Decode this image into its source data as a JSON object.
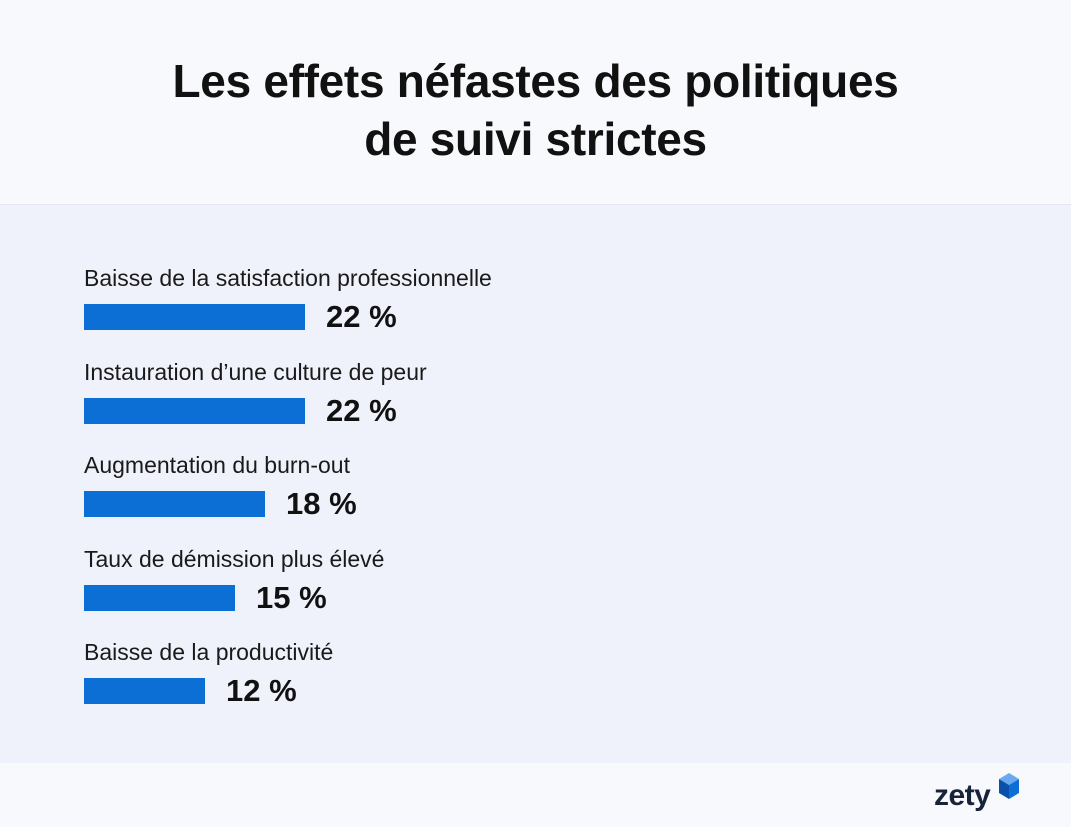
{
  "header": {
    "title_line1": "Les effets néfastes des politiques",
    "title_line2": "de suivi strictes"
  },
  "chart_data": {
    "type": "bar",
    "orientation": "horizontal",
    "title": "Les effets néfastes des politiques de suivi strictes",
    "categories": [
      "Baisse de la satisfaction professionnelle",
      "Instauration d’une culture de peur",
      "Augmentation du burn-out",
      "Taux de démission plus élevé",
      "Baisse de la productivité"
    ],
    "values": [
      22,
      22,
      18,
      15,
      12
    ],
    "value_labels": [
      "22 %",
      "22 %",
      "18 %",
      "15 %",
      "12 %"
    ],
    "unit": "%",
    "bar_color": "#0b6fd6",
    "grid": false,
    "legend": "none"
  },
  "brand": {
    "logo_text": "zety",
    "logo_icon": "zety-cube-icon",
    "color_primary": "#0b6fd6",
    "color_dark": "#17233a"
  }
}
